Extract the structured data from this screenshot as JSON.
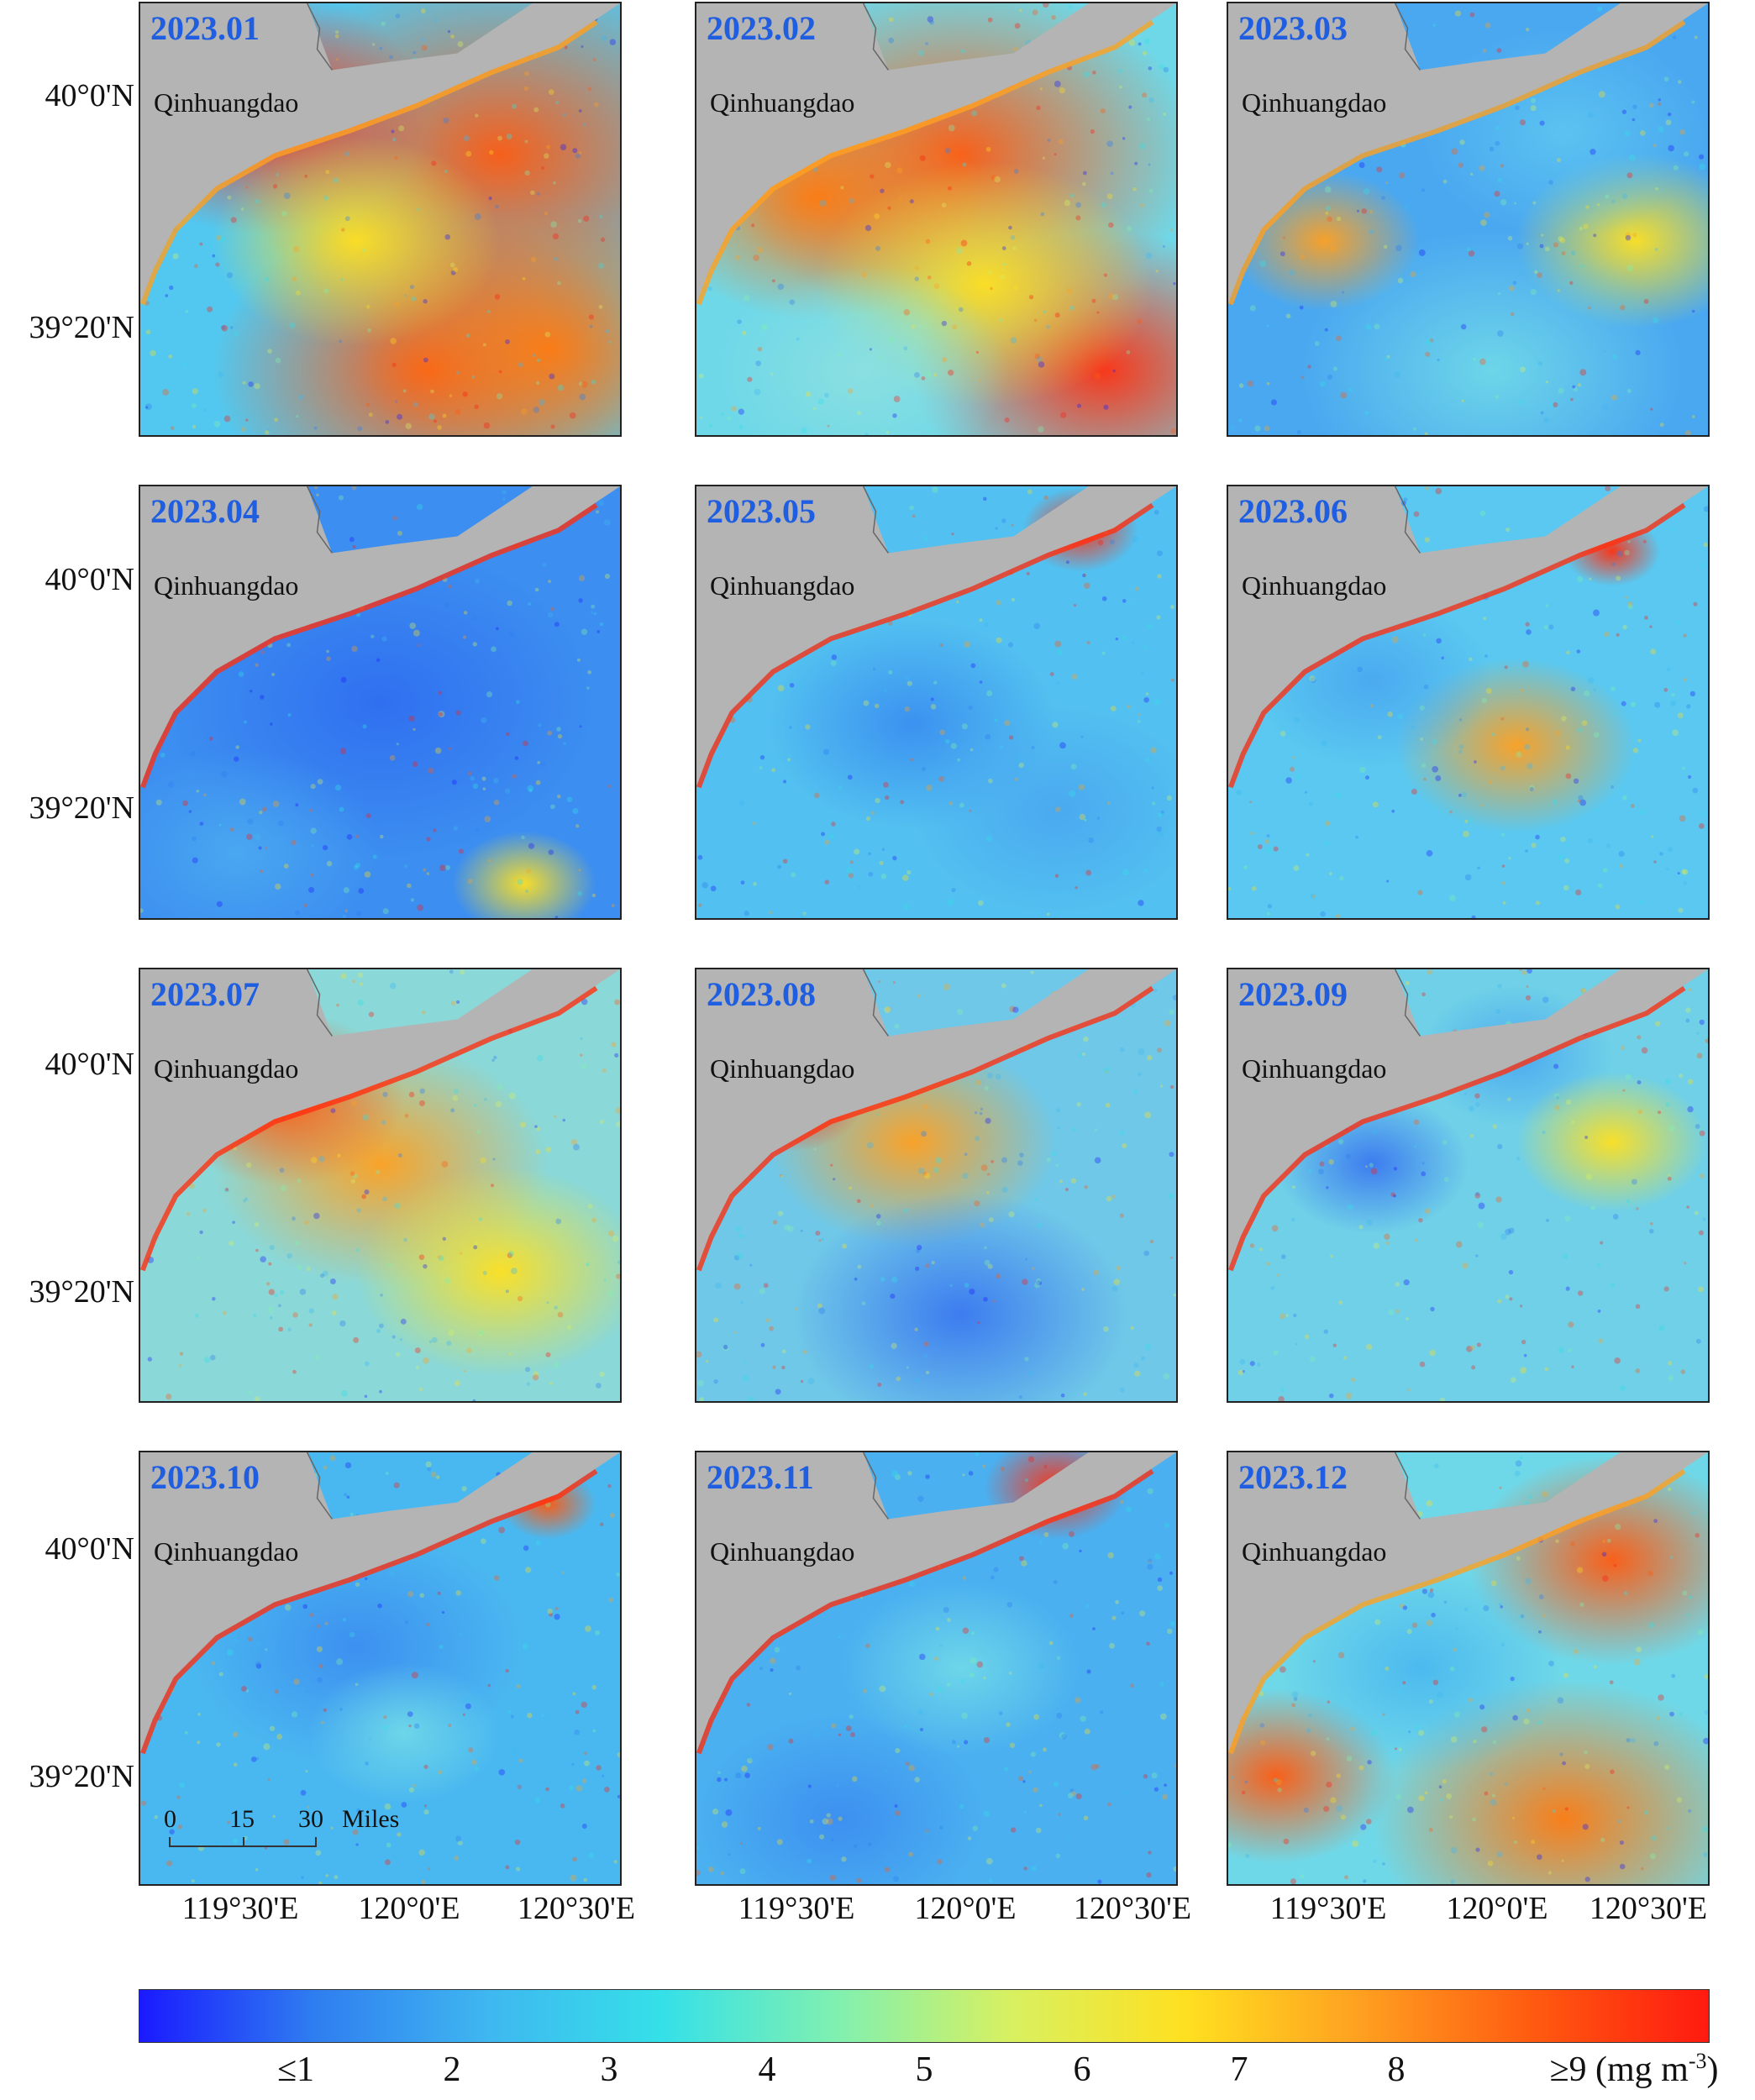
{
  "panels": [
    {
      "label": "2023.01",
      "city": "Qinhuangdao"
    },
    {
      "label": "2023.02",
      "city": "Qinhuangdao"
    },
    {
      "label": "2023.03",
      "city": "Qinhuangdao"
    },
    {
      "label": "2023.04",
      "city": "Qinhuangdao"
    },
    {
      "label": "2023.05",
      "city": "Qinhuangdao"
    },
    {
      "label": "2023.06",
      "city": "Qinhuangdao"
    },
    {
      "label": "2023.07",
      "city": "Qinhuangdao"
    },
    {
      "label": "2023.08",
      "city": "Qinhuangdao"
    },
    {
      "label": "2023.09",
      "city": "Qinhuangdao"
    },
    {
      "label": "2023.10",
      "city": "Qinhuangdao"
    },
    {
      "label": "2023.11",
      "city": "Qinhuangdao"
    },
    {
      "label": "2023.12",
      "city": "Qinhuangdao"
    }
  ],
  "lat_labels": [
    "40°0'N",
    "39°20'N"
  ],
  "lon_labels": [
    "119°30'E",
    "120°0'E",
    "120°30'E"
  ],
  "scale_bar": {
    "ticks": [
      "0",
      "15",
      "30"
    ],
    "unit": "Miles"
  },
  "colorbar": {
    "labels": [
      "≤1",
      "2",
      "3",
      "4",
      "5",
      "6",
      "7",
      "8",
      "≥9 (mg m"
    ],
    "unit_superscript": "-3",
    "unit_close": ")",
    "colors": [
      "#1a1aff",
      "#2f7df0",
      "#3fb7f0",
      "#35e0e8",
      "#80f0b0",
      "#d8f060",
      "#ffe020",
      "#ffa020",
      "#ff5a10",
      "#ff1a10"
    ]
  },
  "land_color": "#b4b4b4"
}
